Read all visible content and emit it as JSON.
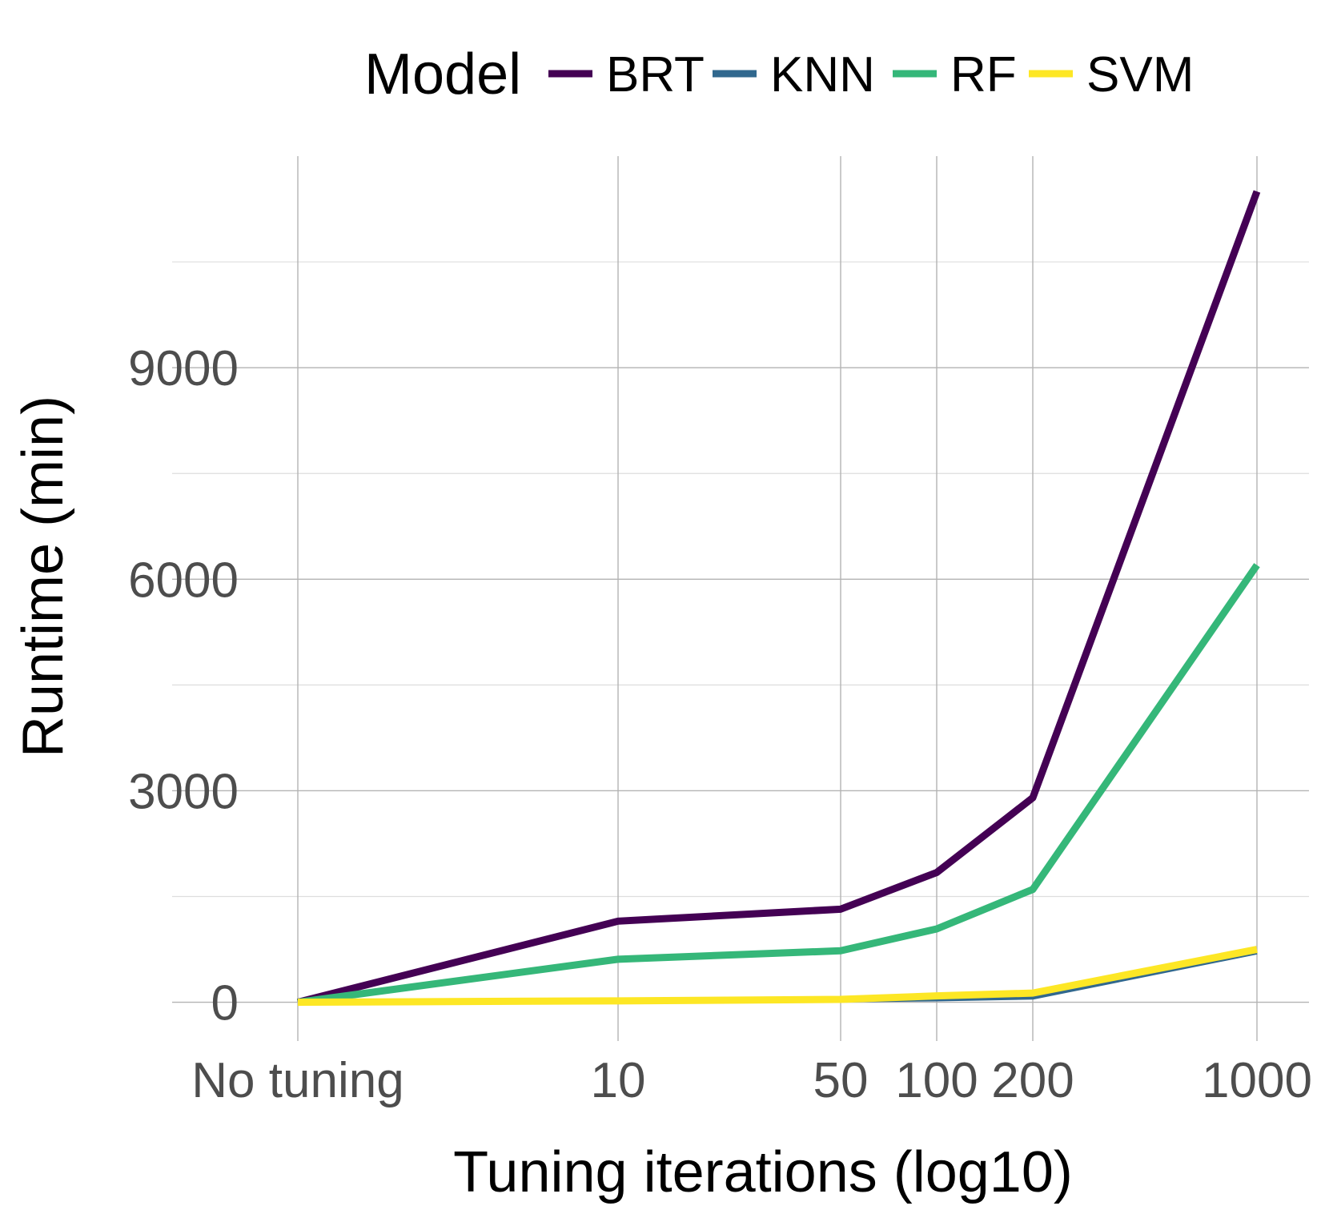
{
  "chart_data": {
    "type": "line",
    "legend": {
      "title": "Model",
      "position": "top"
    },
    "xlabel": "Tuning iterations (log10)",
    "ylabel": "Runtime (min)",
    "x_tick_labels": [
      "No tuning",
      "10",
      "50",
      "100",
      "200",
      "1000"
    ],
    "y_ticks": [
      0,
      3000,
      6000,
      9000
    ],
    "ylim": [
      -550,
      12000
    ],
    "grid": true,
    "series": [
      {
        "name": "BRT",
        "color": "#440154",
        "values": [
          0,
          1150,
          1320,
          1840,
          2900,
          11500
        ]
      },
      {
        "name": "KNN",
        "color": "#31688e",
        "values": [
          0,
          15,
          20,
          35,
          60,
          700
        ]
      },
      {
        "name": "RF",
        "color": "#35b779",
        "values": [
          0,
          610,
          730,
          1040,
          1600,
          6200
        ]
      },
      {
        "name": "SVM",
        "color": "#fde725",
        "values": [
          0,
          20,
          40,
          90,
          130,
          750
        ]
      }
    ]
  }
}
